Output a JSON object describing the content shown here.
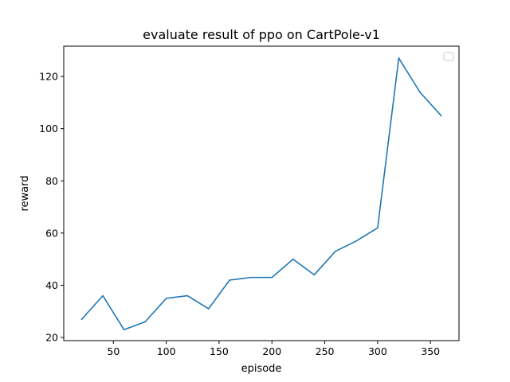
{
  "chart_data": {
    "type": "line",
    "title": "evaluate result of ppo on CartPole-v1",
    "xlabel": "episode",
    "ylabel": "reward",
    "xlim": [
      3,
      377
    ],
    "ylim": [
      18.8,
      131.6
    ],
    "xticks": [
      50,
      100,
      150,
      200,
      250,
      300,
      350
    ],
    "yticks": [
      20,
      40,
      60,
      80,
      100,
      120
    ],
    "grid": false,
    "legend": {
      "placement": "top-right",
      "entries": []
    },
    "series": [
      {
        "color": "#1f77b4",
        "x": [
          20,
          40,
          60,
          80,
          100,
          120,
          140,
          160,
          180,
          200,
          220,
          240,
          260,
          280,
          300,
          320,
          340,
          360
        ],
        "y": [
          27,
          36,
          23,
          26,
          35,
          36,
          31,
          42,
          43,
          43,
          50,
          44,
          53,
          57,
          62,
          127,
          114,
          105
        ]
      }
    ]
  }
}
